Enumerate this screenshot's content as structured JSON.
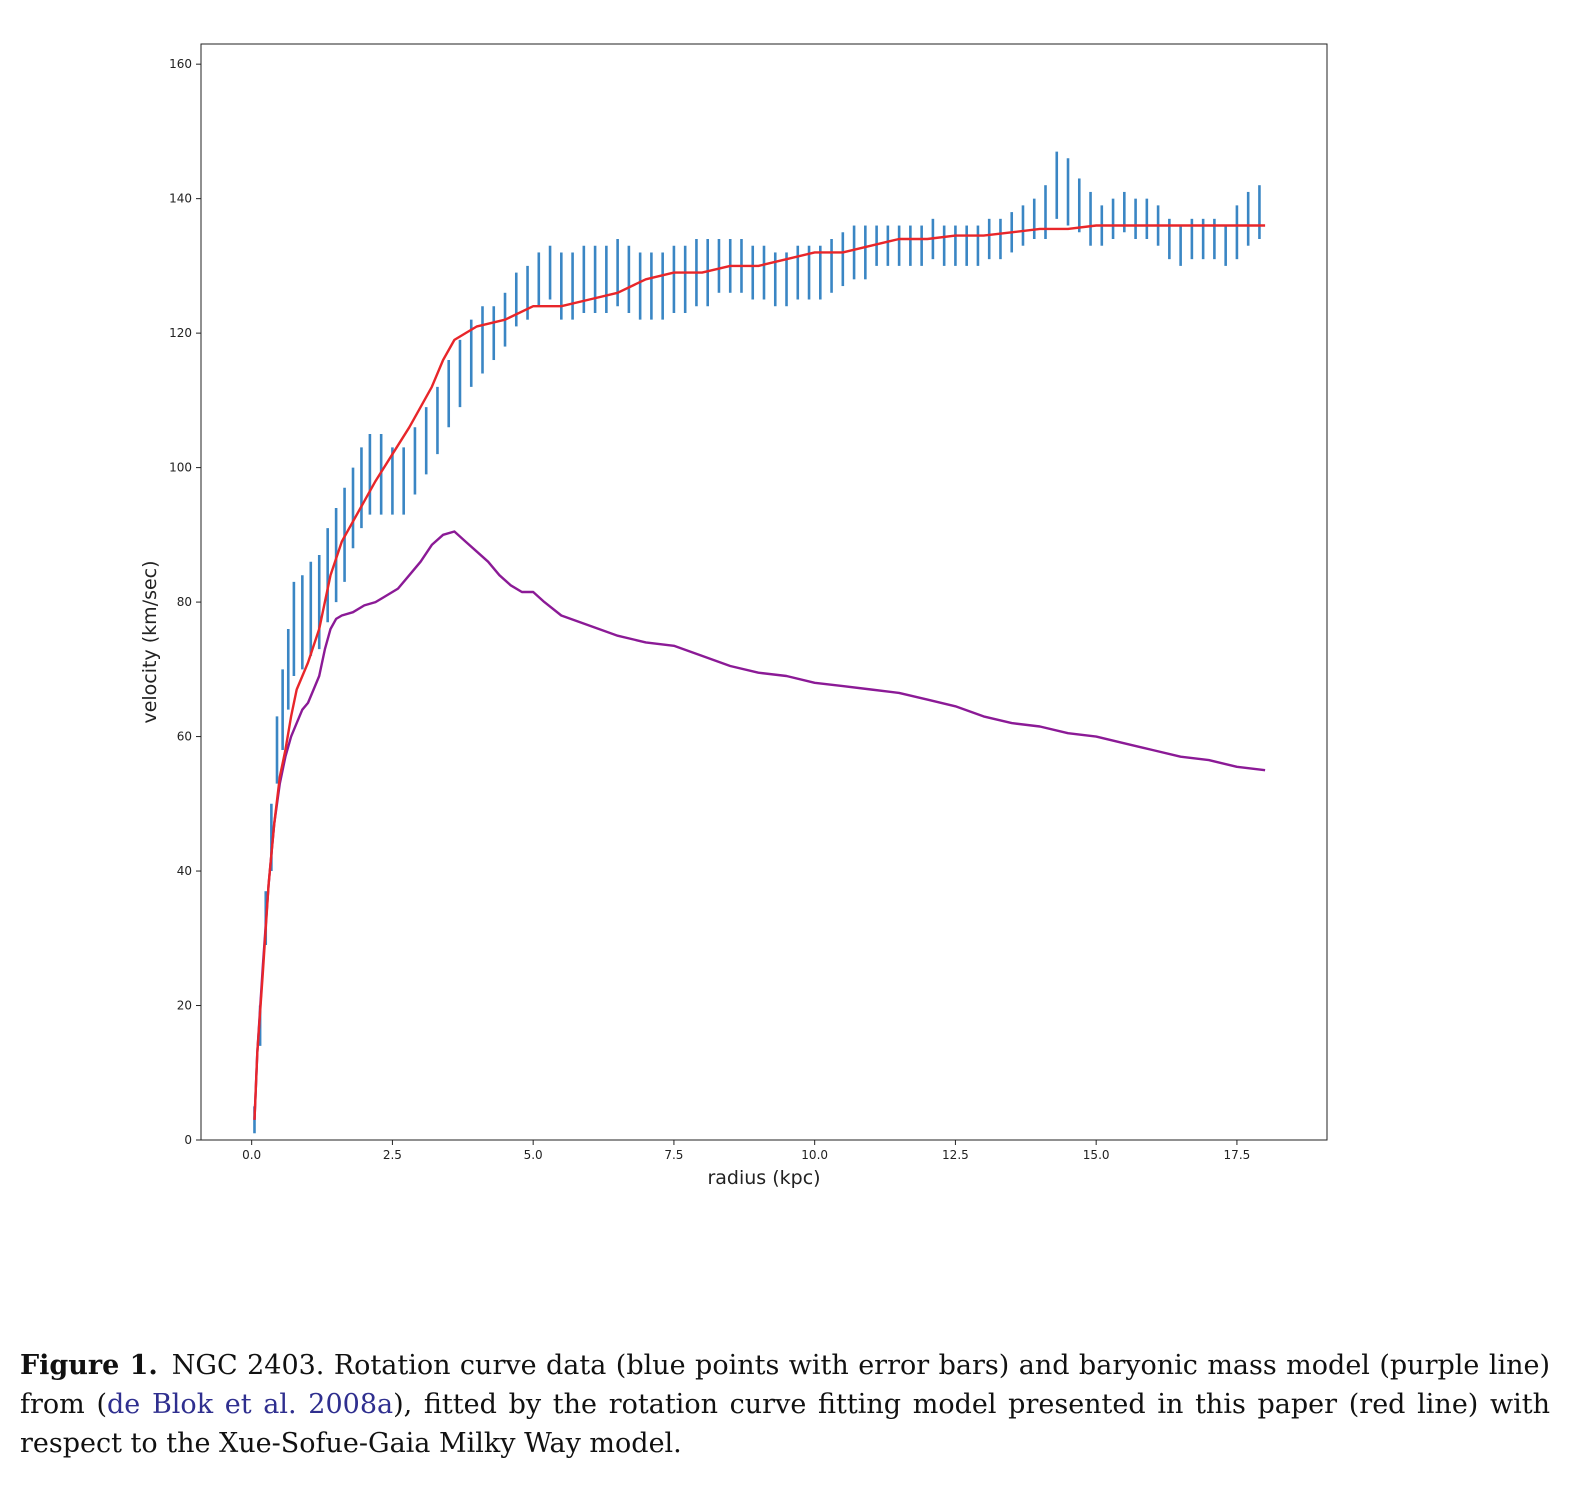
{
  "chart_data": {
    "type": "line",
    "xlabel": "radius (kpc)",
    "ylabel": "velocity (km/sec)",
    "xlim": [
      -0.9,
      19.1
    ],
    "ylim": [
      0,
      163
    ],
    "xticks": [
      0.0,
      2.5,
      5.0,
      7.5,
      10.0,
      12.5,
      15.0,
      17.5
    ],
    "xtick_labels": [
      "0.0",
      "2.5",
      "5.0",
      "7.5",
      "10.0",
      "12.5",
      "15.0",
      "17.5"
    ],
    "yticks": [
      0,
      20,
      40,
      60,
      80,
      100,
      120,
      140,
      160
    ],
    "ytick_labels": [
      "0",
      "20",
      "40",
      "60",
      "80",
      "100",
      "120",
      "140",
      "160"
    ],
    "grid": false,
    "legend": "none",
    "colors": {
      "data": "#3a86c4",
      "fit": "#e8262a",
      "baryonic": "#8b1a96"
    },
    "errorbar_data": {
      "x": [
        0.05,
        0.15,
        0.25,
        0.35,
        0.45,
        0.55,
        0.65,
        0.75,
        0.9,
        1.05,
        1.2,
        1.35,
        1.5,
        1.65,
        1.8,
        1.95,
        2.1,
        2.3,
        2.5,
        2.7,
        2.9,
        3.1,
        3.3,
        3.5,
        3.7,
        3.9,
        4.1,
        4.3,
        4.5,
        4.7,
        4.9,
        5.1,
        5.3,
        5.5,
        5.7,
        5.9,
        6.1,
        6.3,
        6.5,
        6.7,
        6.9,
        7.1,
        7.3,
        7.5,
        7.7,
        7.9,
        8.1,
        8.3,
        8.5,
        8.7,
        8.9,
        9.1,
        9.3,
        9.5,
        9.7,
        9.9,
        10.1,
        10.3,
        10.5,
        10.7,
        10.9,
        11.1,
        11.3,
        11.5,
        11.7,
        11.9,
        12.1,
        12.3,
        12.5,
        12.7,
        12.9,
        13.1,
        13.3,
        13.5,
        13.7,
        13.9,
        14.1,
        14.3,
        14.5,
        14.7,
        14.9,
        15.1,
        15.3,
        15.5,
        15.7,
        15.9,
        16.1,
        16.3,
        16.5,
        16.7,
        16.9,
        17.1,
        17.3,
        17.5,
        17.7,
        17.9
      ],
      "y": [
        3,
        17,
        33,
        45,
        58,
        64,
        70,
        76,
        77,
        79,
        80,
        84,
        87,
        90,
        94,
        97,
        99,
        99,
        98,
        98,
        101,
        104,
        107,
        111,
        114,
        117,
        119,
        120,
        122,
        125,
        126,
        128,
        129,
        127,
        127,
        128,
        128,
        128,
        129,
        128,
        127,
        127,
        127,
        128,
        128,
        129,
        129,
        130,
        130,
        130,
        129,
        129,
        128,
        128,
        129,
        129,
        129,
        130,
        131,
        132,
        132,
        133,
        133,
        133,
        133,
        133,
        134,
        133,
        133,
        133,
        133,
        134,
        134,
        135,
        136,
        137,
        138,
        142,
        141,
        139,
        137,
        136,
        137,
        138,
        137,
        137,
        136,
        134,
        133,
        134,
        134,
        134,
        133,
        135,
        137,
        138
      ],
      "err": [
        2,
        3,
        4,
        5,
        5,
        6,
        6,
        7,
        7,
        7,
        7,
        7,
        7,
        7,
        6,
        6,
        6,
        6,
        5,
        5,
        5,
        5,
        5,
        5,
        5,
        5,
        5,
        4,
        4,
        4,
        4,
        4,
        4,
        5,
        5,
        5,
        5,
        5,
        5,
        5,
        5,
        5,
        5,
        5,
        5,
        5,
        5,
        4,
        4,
        4,
        4,
        4,
        4,
        4,
        4,
        4,
        4,
        4,
        4,
        4,
        4,
        3,
        3,
        3,
        3,
        3,
        3,
        3,
        3,
        3,
        3,
        3,
        3,
        3,
        3,
        3,
        4,
        5,
        5,
        4,
        4,
        3,
        3,
        3,
        3,
        3,
        3,
        3,
        3,
        3,
        3,
        3,
        3,
        4,
        4,
        4
      ]
    },
    "series": [
      {
        "x": [
          0.05,
          0.1,
          0.2,
          0.3,
          0.4,
          0.5,
          0.6,
          0.7,
          0.8,
          1.0,
          1.2,
          1.4,
          1.6,
          1.8,
          2.0,
          2.2,
          2.5,
          2.8,
          3.0,
          3.2,
          3.4,
          3.6,
          3.8,
          4.0,
          4.5,
          5.0,
          5.5,
          6.0,
          6.5,
          7.0,
          7.5,
          8.0,
          8.5,
          9.0,
          9.5,
          10.0,
          10.5,
          11.0,
          11.5,
          12.0,
          12.5,
          13.0,
          13.5,
          14.0,
          14.5,
          15.0,
          15.5,
          16.0,
          16.5,
          17.0,
          17.5,
          18.0
        ],
        "y": [
          3,
          13,
          25,
          38,
          47,
          54,
          58,
          63,
          67,
          71,
          76,
          84,
          89,
          92,
          95,
          98,
          102,
          106,
          109,
          112,
          116,
          119,
          120,
          121,
          122,
          124,
          124,
          125,
          126,
          128,
          129,
          129,
          130,
          130,
          131,
          132,
          132,
          133,
          134,
          134,
          134.5,
          134.5,
          135,
          135.5,
          135.5,
          136,
          136,
          136,
          136,
          136,
          136,
          136
        ]
      },
      {
        "x": [
          0.05,
          0.1,
          0.2,
          0.3,
          0.4,
          0.5,
          0.6,
          0.7,
          0.8,
          0.9,
          1.0,
          1.1,
          1.2,
          1.3,
          1.4,
          1.5,
          1.6,
          1.8,
          2.0,
          2.2,
          2.4,
          2.6,
          2.8,
          3.0,
          3.2,
          3.4,
          3.6,
          3.8,
          4.0,
          4.2,
          4.4,
          4.6,
          4.8,
          5.0,
          5.2,
          5.5,
          6.0,
          6.5,
          7.0,
          7.5,
          8.0,
          8.5,
          9.0,
          9.5,
          10.0,
          10.5,
          11.0,
          11.5,
          12.0,
          12.5,
          13.0,
          13.5,
          14.0,
          14.5,
          15.0,
          15.5,
          16.0,
          16.5,
          17.0,
          17.5,
          18.0
        ],
        "y": [
          3,
          13,
          26,
          38,
          47,
          53,
          57,
          60,
          62,
          64,
          65,
          67,
          69,
          73,
          76,
          77.5,
          78,
          78.5,
          79.5,
          80,
          81,
          82,
          84,
          86,
          88.5,
          90,
          90.5,
          89,
          87.5,
          86,
          84,
          82.5,
          81.5,
          81.5,
          80,
          78,
          76.5,
          75,
          74,
          73.5,
          72,
          70.5,
          69.5,
          69,
          68,
          67.5,
          67,
          66.5,
          65.5,
          64.5,
          63,
          62,
          61.5,
          60.5,
          60,
          59,
          58,
          57,
          56.5,
          55.5,
          55
        ]
      }
    ]
  },
  "caption": {
    "label": "Figure 1.",
    "text_before": "NGC 2403. Rotation curve data (blue points with error bars) and baryonic mass model (purple line) from (",
    "citation": "de Blok et al. 2008a",
    "text_after": "), fitted by the rotation curve fitting model presented in this paper (red line) with respect to the Xue-Sofue-Gaia Milky Way model."
  }
}
